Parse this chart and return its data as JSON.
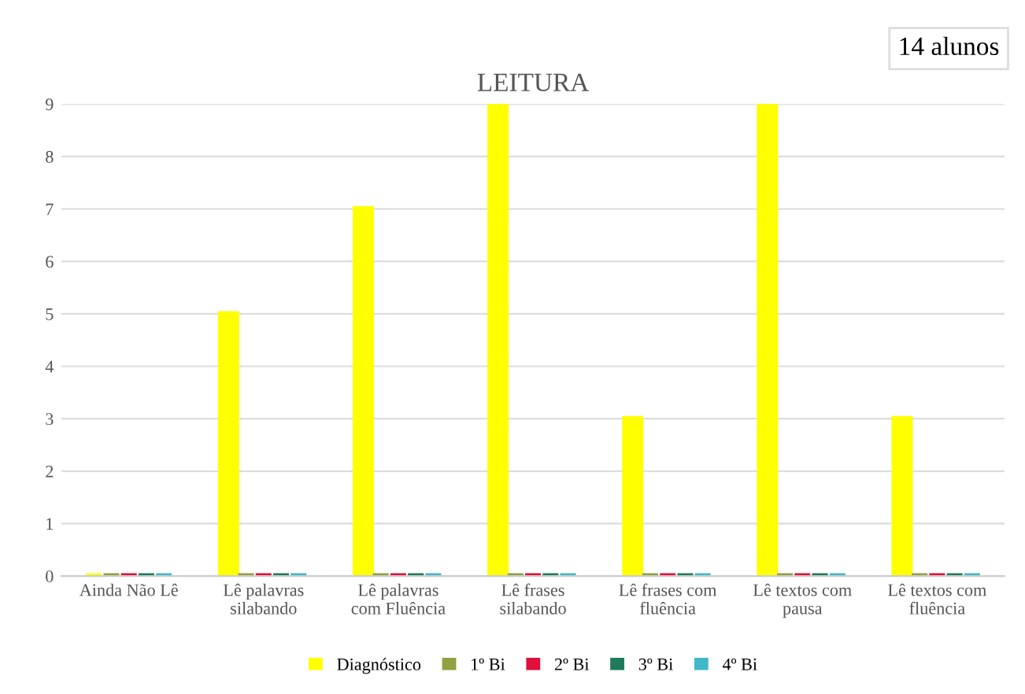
{
  "chart_data": {
    "type": "bar",
    "title": "LEITURA",
    "annotations": [
      "14 alunos"
    ],
    "categories": [
      "Ainda Não Lê",
      "Lê palavras silabando",
      "Lê palavras com Fluência",
      "Lê frases silabando",
      "Lê frases com fluência",
      "Lê textos com pausa",
      "Lê textos com fluência"
    ],
    "series": [
      {
        "name": "Diagnóstico",
        "color": "#ffff00",
        "values": [
          0,
          5,
          7,
          9,
          3,
          9,
          3
        ]
      },
      {
        "name": "1º Bi",
        "color": "#92a040",
        "values": [
          0,
          0,
          0,
          0,
          0,
          0,
          0
        ]
      },
      {
        "name": "2º Bi",
        "color": "#e0103a",
        "values": [
          0,
          0,
          0,
          0,
          0,
          0,
          0
        ]
      },
      {
        "name": "3º Bi",
        "color": "#1e7a5a",
        "values": [
          0,
          0,
          0,
          0,
          0,
          0,
          0
        ]
      },
      {
        "name": "4º Bi",
        "color": "#40b8c8",
        "values": [
          0,
          0,
          0,
          0,
          0,
          0,
          0
        ]
      }
    ],
    "ylim": [
      0,
      9
    ],
    "yticks": [
      0,
      1,
      2,
      3,
      4,
      5,
      6,
      7,
      8,
      9
    ],
    "grid": "y",
    "legend": "bottom"
  }
}
